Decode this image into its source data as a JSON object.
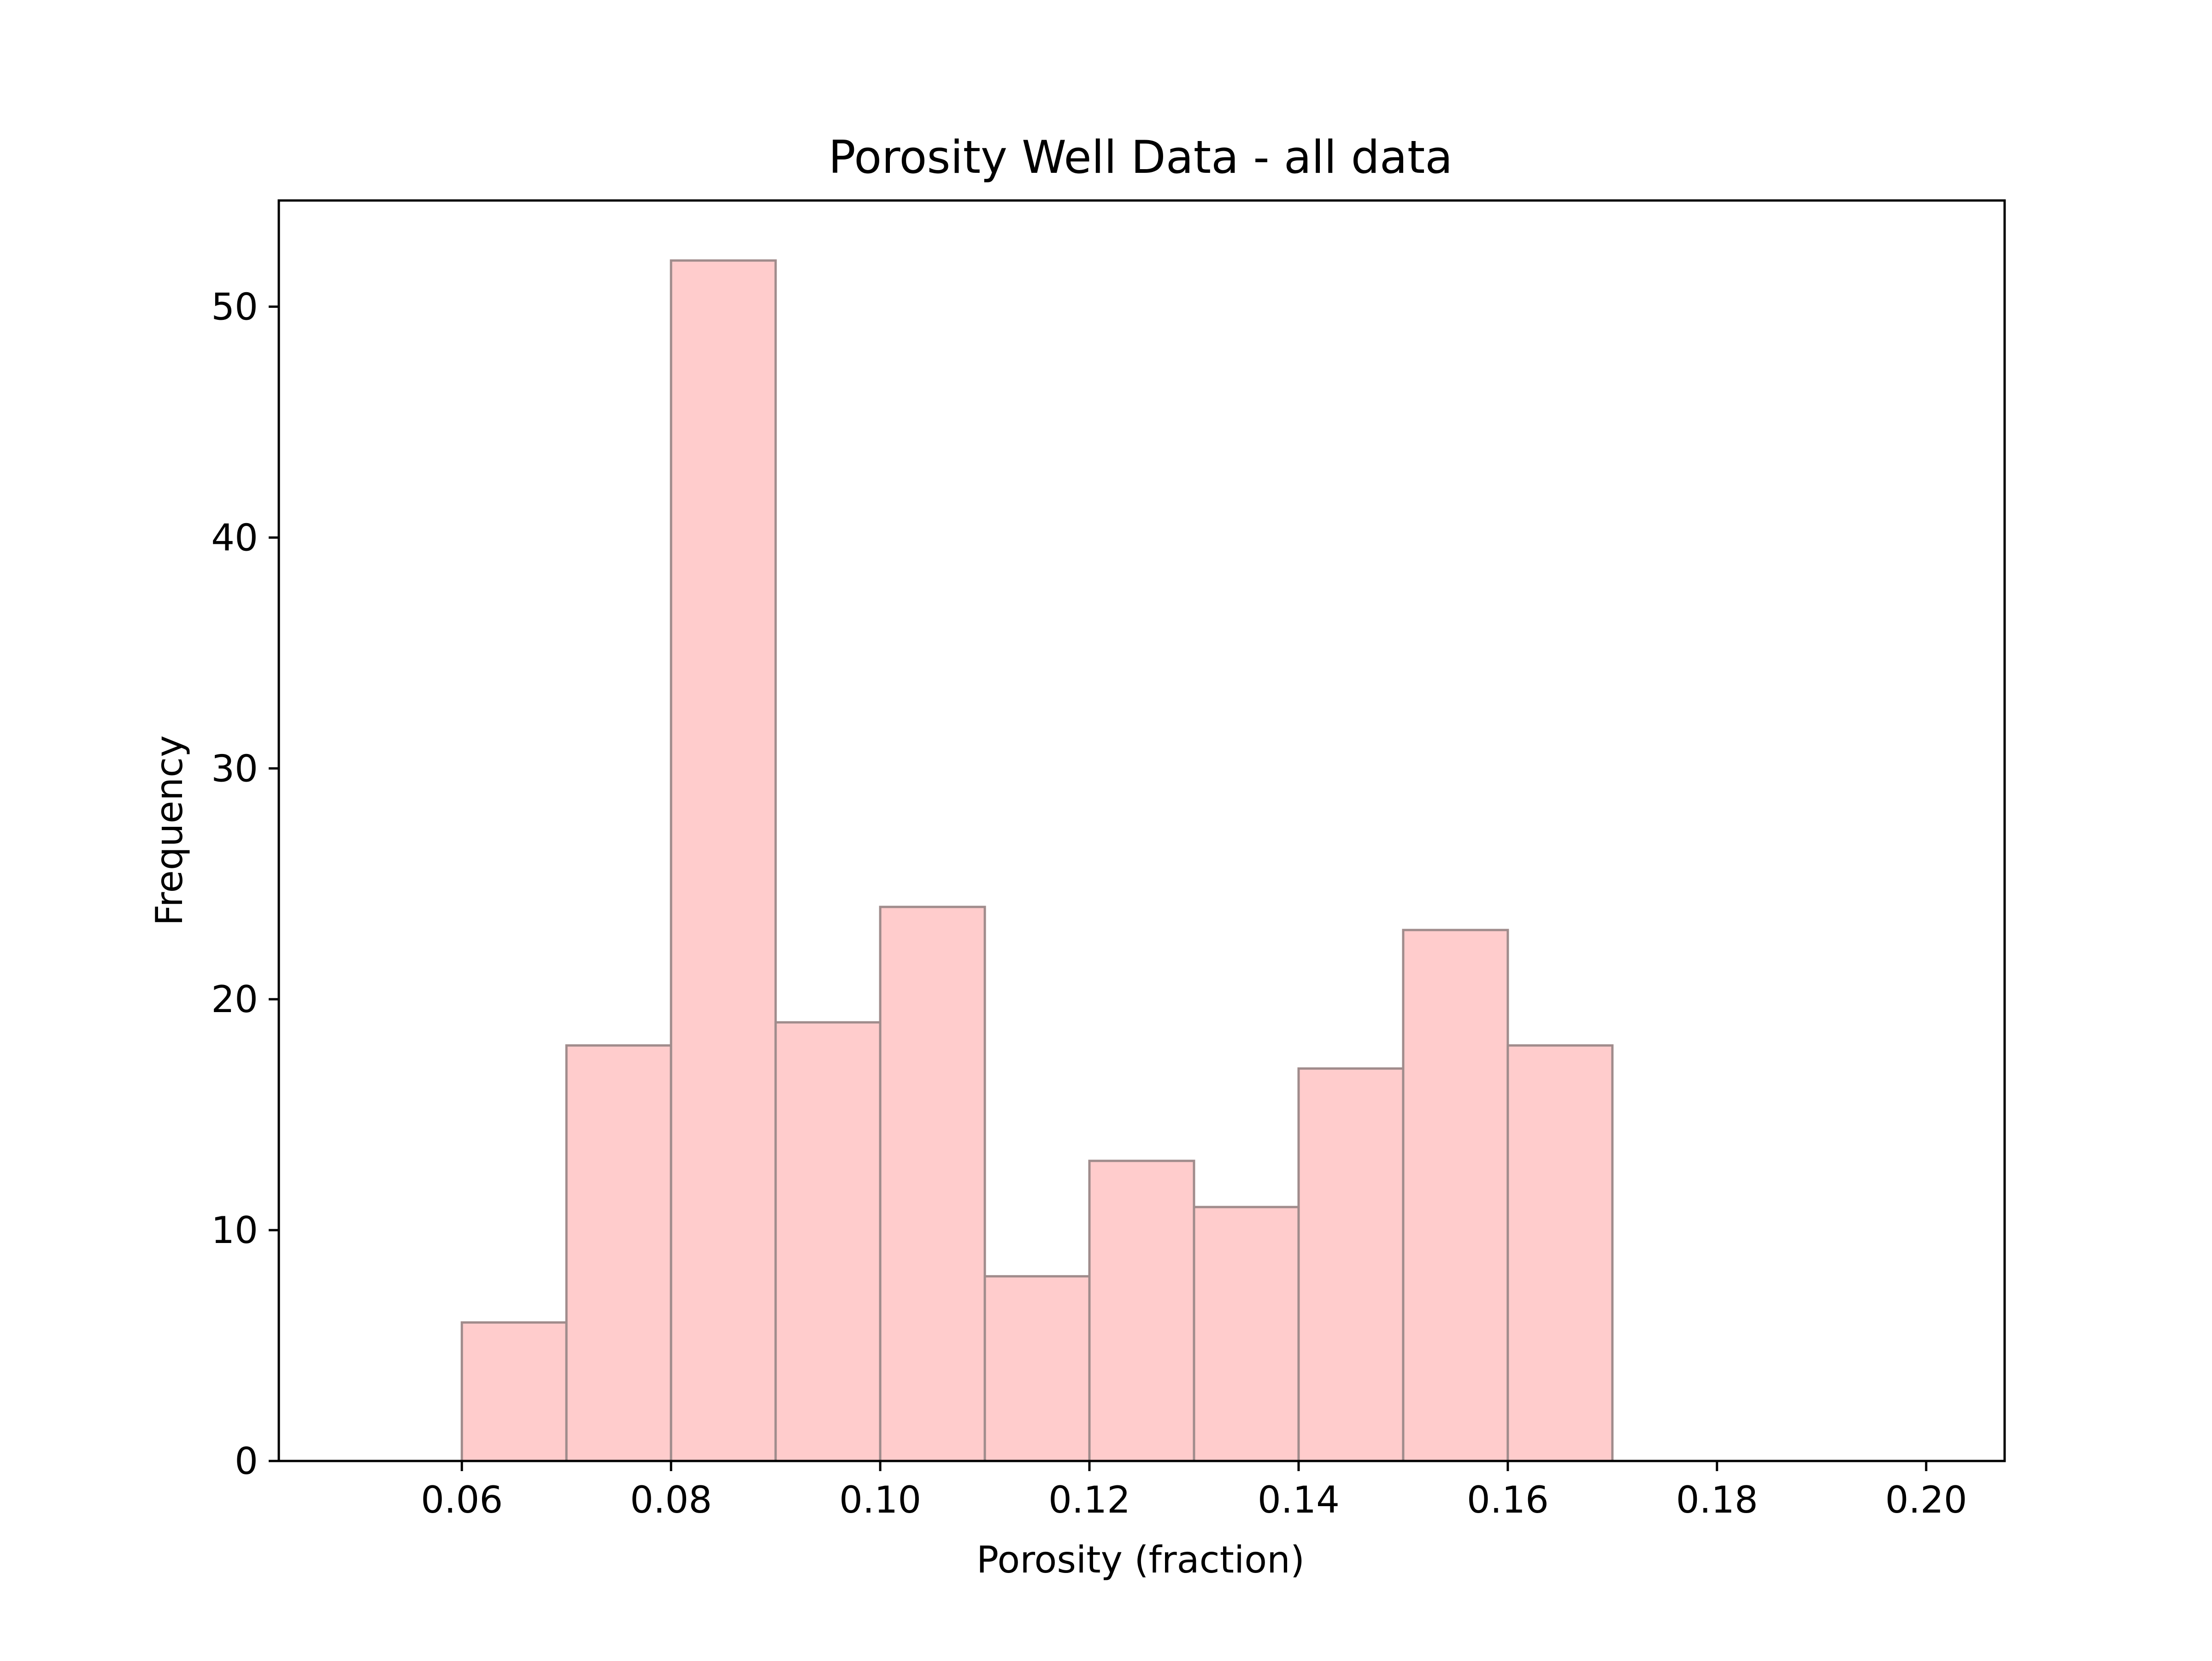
{
  "chart_data": {
    "type": "bar",
    "title": "Porosity Well Data - all data",
    "xlabel": "Porosity (fraction)",
    "ylabel": "Frequency",
    "bin_edges": [
      0.06,
      0.07,
      0.08,
      0.09,
      0.1,
      0.11,
      0.12,
      0.13,
      0.14,
      0.15,
      0.16,
      0.17
    ],
    "values": [
      6,
      18,
      52,
      19,
      24,
      8,
      13,
      11,
      17,
      23,
      18
    ],
    "xlim": [
      0.0425,
      0.2075
    ],
    "ylim": [
      0,
      54.6
    ],
    "x_ticks": [
      "0.06",
      "0.08",
      "0.10",
      "0.12",
      "0.14",
      "0.16",
      "0.18",
      "0.20"
    ],
    "y_ticks": [
      "0",
      "10",
      "20",
      "30",
      "40",
      "50"
    ],
    "grid": false,
    "bar_fill": "#ffcccc",
    "bar_edge": "#a08c8c",
    "axes_color": "#000000"
  }
}
